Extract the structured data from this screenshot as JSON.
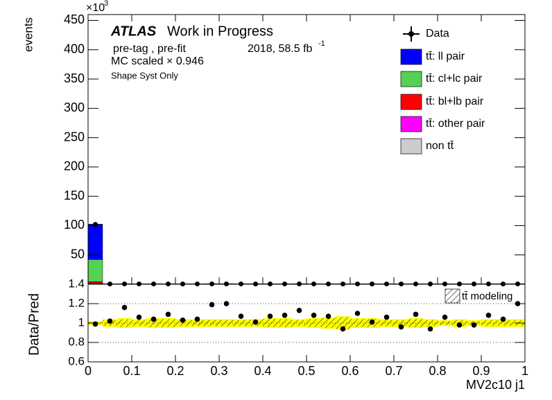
{
  "chart_data": [
    {
      "type": "stacked_histogram",
      "title": "ATLAS",
      "subtitle": "Work in Progress",
      "annotations": [
        "pre-tag ,  pre-fit",
        "MC scaled × 0.946",
        "Shape Syst Only"
      ],
      "lumi": {
        "text": "2018, 58.5 fb",
        "sup": "-1"
      },
      "y_multiplier": {
        "text": "×10",
        "sup": "3"
      },
      "ylabel": "events",
      "bins": [
        0,
        0.0333,
        0.0667,
        0.1,
        0.1333,
        0.1667,
        0.2,
        0.2333,
        0.2667,
        0.3,
        0.3333,
        0.3667,
        0.4,
        0.4333,
        0.4667,
        0.5,
        0.5333,
        0.5667,
        0.6,
        0.6333,
        0.6667,
        0.7,
        0.7333,
        0.7667,
        0.8,
        0.8333,
        0.8667,
        0.9,
        0.9333,
        0.9667,
        1
      ],
      "xlim": [
        0,
        1
      ],
      "xticks": [
        0,
        0.1,
        0.2,
        0.3,
        0.4,
        0.5,
        0.6,
        0.7,
        0.8,
        0.9,
        1
      ],
      "ylim": [
        0,
        460
      ],
      "yticks": [
        50,
        100,
        150,
        200,
        250,
        300,
        350,
        400,
        450
      ],
      "data": {
        "name": "Data",
        "color": "#000000",
        "values": [
          102,
          0.48,
          0.55,
          0.5,
          0.49,
          0.51,
          0.48,
          0.49,
          0.55,
          0.56,
          0.5,
          0.47,
          0.5,
          0.5,
          0.53,
          0.5,
          0.5,
          0.44,
          0.51,
          0.47,
          0.49,
          0.45,
          0.51,
          0.44,
          0.49,
          0.46,
          0.46,
          0.5,
          0.48,
          0.56
        ]
      },
      "series": [
        {
          "name": "tt̄: ll pair",
          "color": "#0000ff",
          "values": [
            60,
            0.3,
            0.3,
            0.3,
            0.3,
            0.3,
            0.3,
            0.3,
            0.3,
            0.3,
            0.3,
            0.3,
            0.3,
            0.3,
            0.3,
            0.3,
            0.3,
            0.3,
            0.3,
            0.3,
            0.3,
            0.3,
            0.3,
            0.3,
            0.3,
            0.3,
            0.3,
            0.3,
            0.3,
            0.3
          ]
        },
        {
          "name": "tt̄: cl+lc pair",
          "color": "#55d155",
          "values": [
            38,
            0.12,
            0.12,
            0.12,
            0.12,
            0.12,
            0.12,
            0.12,
            0.12,
            0.12,
            0.12,
            0.12,
            0.12,
            0.12,
            0.12,
            0.12,
            0.12,
            0.12,
            0.12,
            0.12,
            0.12,
            0.12,
            0.12,
            0.12,
            0.12,
            0.12,
            0.12,
            0.12,
            0.12,
            0.12
          ]
        },
        {
          "name": "tt̄: bl+lb pair",
          "color": "#ff0000",
          "values": [
            2,
            0.02,
            0.02,
            0.02,
            0.02,
            0.02,
            0.02,
            0.02,
            0.02,
            0.02,
            0.02,
            0.02,
            0.02,
            0.02,
            0.02,
            0.02,
            0.02,
            0.02,
            0.02,
            0.02,
            0.02,
            0.02,
            0.02,
            0.02,
            0.02,
            0.02,
            0.02,
            0.02,
            0.02,
            0.02
          ]
        },
        {
          "name": "tt̄: other pair",
          "color": "#ff00ff",
          "values": [
            1.2,
            0.01,
            0.01,
            0.01,
            0.01,
            0.01,
            0.01,
            0.01,
            0.01,
            0.01,
            0.01,
            0.01,
            0.01,
            0.01,
            0.01,
            0.01,
            0.01,
            0.01,
            0.01,
            0.01,
            0.01,
            0.01,
            0.01,
            0.01,
            0.01,
            0.01,
            0.01,
            0.01,
            0.01,
            0.01
          ]
        },
        {
          "name": "non tt̄",
          "color": "#cccccc",
          "values": [
            1,
            0.03,
            0.03,
            0.03,
            0.03,
            0.03,
            0.03,
            0.03,
            0.03,
            0.03,
            0.03,
            0.03,
            0.03,
            0.03,
            0.03,
            0.03,
            0.03,
            0.03,
            0.03,
            0.03,
            0.03,
            0.03,
            0.03,
            0.03,
            0.03,
            0.03,
            0.03,
            0.03,
            0.03,
            0.03
          ]
        }
      ]
    },
    {
      "type": "ratio",
      "ylabel": "Data/Pred",
      "xlabel": "MV2c10 j1",
      "xlim": [
        0,
        1
      ],
      "xticks": [
        0,
        0.1,
        0.2,
        0.3,
        0.4,
        0.5,
        0.6,
        0.7,
        0.8,
        0.9,
        1
      ],
      "ylim": [
        0.6,
        1.4
      ],
      "yticks": [
        0.6,
        0.8,
        1,
        1.2,
        1.4
      ],
      "grid_lines": [
        0.8,
        1,
        1.2
      ],
      "values": [
        0.99,
        1.02,
        1.16,
        1.06,
        1.04,
        1.09,
        1.03,
        1.04,
        1.19,
        1.2,
        1.07,
        1.01,
        1.07,
        1.08,
        1.13,
        1.08,
        1.07,
        0.94,
        1.1,
        1.01,
        1.06,
        0.96,
        1.09,
        0.94,
        1.06,
        0.98,
        0.98,
        1.08,
        1.04,
        1.2
      ],
      "errors": [
        0.005,
        0.02,
        0.025,
        0.025,
        0.025,
        0.025,
        0.025,
        0.025,
        0.025,
        0.025,
        0.025,
        0.025,
        0.025,
        0.025,
        0.025,
        0.025,
        0.025,
        0.025,
        0.025,
        0.025,
        0.025,
        0.025,
        0.025,
        0.025,
        0.025,
        0.025,
        0.025,
        0.025,
        0.025,
        0.025
      ],
      "syst_band": {
        "color": "#ffff00",
        "values": [
          0.02,
          0.04,
          0.05,
          0.04,
          0.05,
          0.05,
          0.04,
          0.04,
          0.04,
          0.04,
          0.04,
          0.04,
          0.05,
          0.05,
          0.04,
          0.05,
          0.06,
          0.07,
          0.05,
          0.05,
          0.04,
          0.04,
          0.05,
          0.04,
          0.03,
          0.04,
          0.03,
          0.04,
          0.04,
          0.04
        ]
      },
      "modeling_band": {
        "name": "tt̄ modeling",
        "values": [
          0.01,
          0.03,
          0.04,
          0.03,
          0.04,
          0.04,
          0.03,
          0.03,
          0.03,
          0.03,
          0.03,
          0.03,
          0.04,
          0.04,
          0.03,
          0.04,
          0.05,
          0.06,
          0.04,
          0.04,
          0.03,
          0.03,
          0.04,
          0.03,
          0.02,
          0.03,
          0.02,
          0.03,
          0.03,
          0.03
        ]
      }
    }
  ]
}
